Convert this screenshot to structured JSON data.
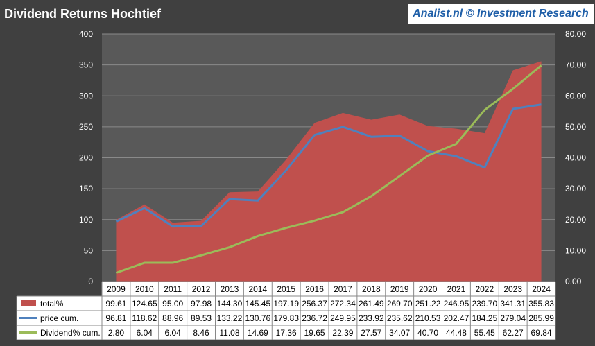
{
  "title": "Dividend Returns Hochtief",
  "brand": "Analist.nl © Investment Research",
  "colors": {
    "background": "#404040",
    "plot": "#595959",
    "grid": "#8a8a8a",
    "total": "#c0504d",
    "price": "#4f81bd",
    "dividend": "#9bbb59",
    "table_bg": "#ffffff",
    "text_light": "#ffffff",
    "text_dark": "#000000"
  },
  "chart_data": {
    "type": "area",
    "title": "Dividend Returns Hochtief",
    "categories": [
      "2009",
      "2010",
      "2011",
      "2012",
      "2013",
      "2014",
      "2015",
      "2016",
      "2017",
      "2018",
      "2019",
      "2020",
      "2021",
      "2022",
      "2023",
      "2024"
    ],
    "y_left": {
      "ylim": [
        0,
        400
      ],
      "ticks": [
        "0",
        "50",
        "100",
        "150",
        "200",
        "250",
        "300",
        "350",
        "400"
      ]
    },
    "y_right": {
      "ylim": [
        0,
        80
      ],
      "ticks": [
        "0.00",
        "10.00",
        "20.00",
        "30.00",
        "40.00",
        "50.00",
        "60.00",
        "70.00",
        "80.00"
      ]
    },
    "series": [
      {
        "name": "total%",
        "kind": "area",
        "axis": "left",
        "values": [
          99.61,
          124.65,
          95.0,
          97.98,
          144.3,
          145.45,
          197.19,
          256.37,
          272.34,
          261.49,
          269.7,
          251.22,
          246.95,
          239.7,
          341.31,
          355.83
        ],
        "labels": [
          "99.61",
          "124.65",
          "95.00",
          "97.98",
          "144.30",
          "145.45",
          "197.19",
          "256.37",
          "272.34",
          "261.49",
          "269.70",
          "251.22",
          "246.95",
          "239.70",
          "341.31",
          "355.83"
        ]
      },
      {
        "name": "price cum.",
        "kind": "line",
        "axis": "left",
        "values": [
          96.81,
          118.62,
          88.96,
          89.53,
          133.22,
          130.76,
          179.83,
          236.72,
          249.95,
          233.92,
          235.62,
          210.53,
          202.47,
          184.25,
          279.04,
          285.99
        ],
        "labels": [
          "96.81",
          "118.62",
          "88.96",
          "89.53",
          "133.22",
          "130.76",
          "179.83",
          "236.72",
          "249.95",
          "233.92",
          "235.62",
          "210.53",
          "202.47",
          "184.25",
          "279.04",
          "285.99"
        ]
      },
      {
        "name": "Dividend% cum.",
        "kind": "line",
        "axis": "right",
        "values": [
          2.8,
          6.04,
          6.04,
          8.46,
          11.08,
          14.69,
          17.36,
          19.65,
          22.39,
          27.57,
          34.07,
          40.7,
          44.48,
          55.45,
          62.27,
          69.84
        ],
        "labels": [
          "2.80",
          "6.04",
          "6.04",
          "8.46",
          "11.08",
          "14.69",
          "17.36",
          "19.65",
          "22.39",
          "27.57",
          "34.07",
          "40.70",
          "44.48",
          "55.45",
          "62.27",
          "69.84"
        ]
      }
    ],
    "grid": true,
    "legend": "data-table"
  }
}
